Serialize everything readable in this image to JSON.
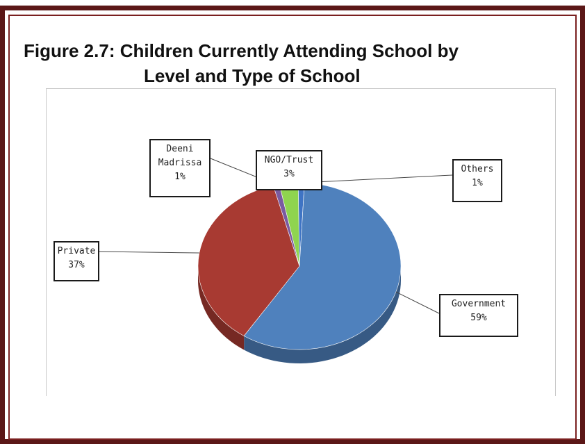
{
  "figure": {
    "title_line1": "Figure 2.7: Children Currently Attending School by",
    "title_line2": "Level and Type of School"
  },
  "chart_data": {
    "type": "pie",
    "title": "Figure 2.7: Children Currently Attending School by Level and Type of School",
    "legend": "none",
    "slices": [
      {
        "label": "Government",
        "value": 59,
        "pct_text": "59%",
        "color": "#4f81bd"
      },
      {
        "label": "Private",
        "value": 37,
        "pct_text": "37%",
        "color": "#a83a32"
      },
      {
        "label": "Deeni Madrissa",
        "value": 1,
        "pct_text": "1%",
        "color": "#7a5aa0"
      },
      {
        "label": "NGO/Trust",
        "value": 3,
        "pct_text": "3%",
        "color": "#8fd44f"
      },
      {
        "label": "Others",
        "value": 1,
        "pct_text": "1%",
        "color": "#3f74c4"
      }
    ]
  }
}
